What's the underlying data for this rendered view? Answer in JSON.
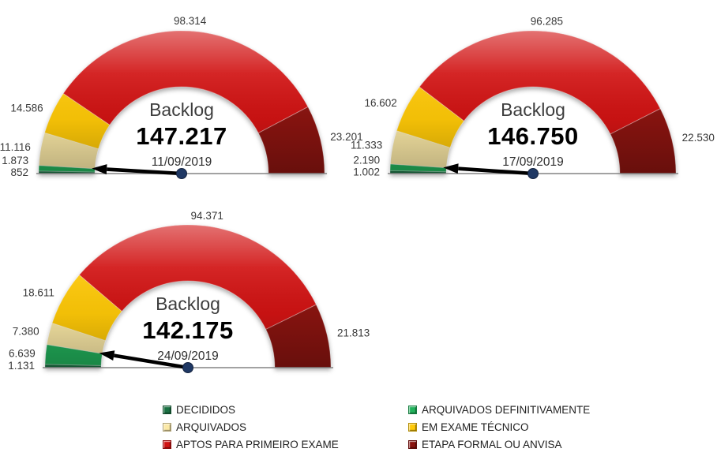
{
  "colors": {
    "needle": "#000000",
    "needle_dot": "#1F3864",
    "baseline": "#848484",
    "label_text": "#383838",
    "background": "#FFFFFF"
  },
  "series_colors": [
    "#1B7143",
    "#22B25C",
    "#FBE9A6",
    "#FFC907",
    "#D11313",
    "#8B1410"
  ],
  "legend": {
    "items": [
      {
        "label": "DECIDIDOS",
        "color": "#1B7143"
      },
      {
        "label": "ARQUIVADOS DEFINITIVAMENTE",
        "color": "#22B25C"
      },
      {
        "label": "ARQUIVADOS",
        "color": "#FBE9A6"
      },
      {
        "label": "EM EXAME TÉCNICO",
        "color": "#FFC907"
      },
      {
        "label": "APTOS PARA PRIMEIRO EXAME",
        "color": "#D11313"
      },
      {
        "label": "ETAPA FORMAL OU ANVISA",
        "color": "#8B1410"
      }
    ]
  },
  "chart_data": [
    {
      "type": "gauge",
      "shape": "semicircle-donut",
      "title": "Backlog",
      "total": 147217,
      "total_label": "147.217",
      "date": "11/09/2019",
      "categories": [
        "DECIDIDOS",
        "ARQUIVADOS DEFINITIVAMENTE",
        "ARQUIVADOS",
        "EM EXAME TÉCNICO",
        "APTOS PARA PRIMEIRO EXAME",
        "ETAPA FORMAL OU ANVISA"
      ],
      "values": [
        852,
        1873,
        11116,
        14586,
        98314,
        23201
      ],
      "value_labels": [
        "852",
        "1.873",
        "11.116",
        "14.586",
        "98.314",
        "23.201"
      ]
    },
    {
      "type": "gauge",
      "shape": "semicircle-donut",
      "title": "Backlog",
      "total": 146750,
      "total_label": "146.750",
      "date": "17/09/2019",
      "categories": [
        "DECIDIDOS",
        "ARQUIVADOS DEFINITIVAMENTE",
        "ARQUIVADOS",
        "EM EXAME TÉCNICO",
        "APTOS PARA PRIMEIRO EXAME",
        "ETAPA FORMAL OU ANVISA"
      ],
      "values": [
        1002,
        2190,
        11333,
        16602,
        96285,
        22530
      ],
      "value_labels": [
        "1.002",
        "2.190",
        "11.333",
        "16.602",
        "96.285",
        "22.530"
      ]
    },
    {
      "type": "gauge",
      "shape": "semicircle-donut",
      "title": "Backlog",
      "total": 142175,
      "total_label": "142.175",
      "date": "24/09/2019",
      "categories": [
        "DECIDIDOS",
        "ARQUIVADOS DEFINITIVAMENTE",
        "ARQUIVADOS",
        "EM EXAME TÉCNICO",
        "APTOS PARA PRIMEIRO EXAME",
        "ETAPA FORMAL OU ANVISA"
      ],
      "values": [
        1131,
        6639,
        7380,
        18611,
        94371,
        21813
      ],
      "value_labels": [
        "1.131",
        "6.639",
        "7.380",
        "18.611",
        "94.371",
        "21.813"
      ]
    }
  ]
}
